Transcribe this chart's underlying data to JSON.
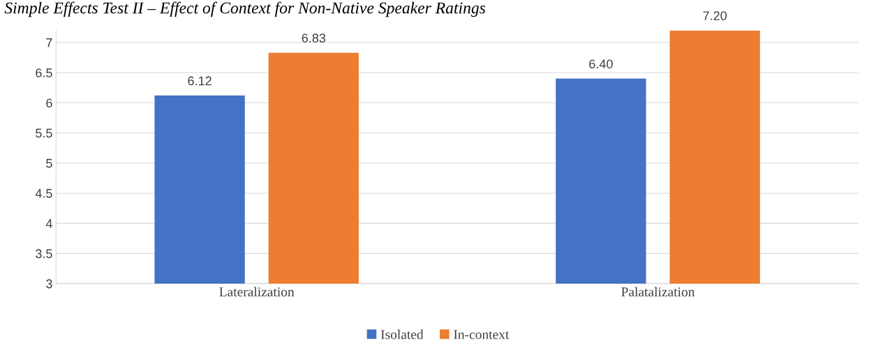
{
  "chart_data": {
    "type": "bar",
    "title": "Simple Effects Test II – Effect of Context for Non-Native Speaker Ratings",
    "categories": [
      "Lateralization",
      "Palatalization"
    ],
    "series": [
      {
        "name": "Isolated",
        "color": "#4472c4",
        "values": [
          6.12,
          6.4
        ],
        "value_labels": [
          "6.12",
          "6.40"
        ]
      },
      {
        "name": "In-context",
        "color": "#ed7d31",
        "values": [
          6.83,
          7.2
        ],
        "value_labels": [
          "6.83",
          "7.20"
        ]
      }
    ],
    "ylim": [
      3,
      7.2
    ],
    "yticks": [
      3,
      3.5,
      4,
      4.5,
      5,
      5.5,
      6,
      6.5,
      7
    ],
    "grid": "y",
    "legend": "bottom"
  }
}
